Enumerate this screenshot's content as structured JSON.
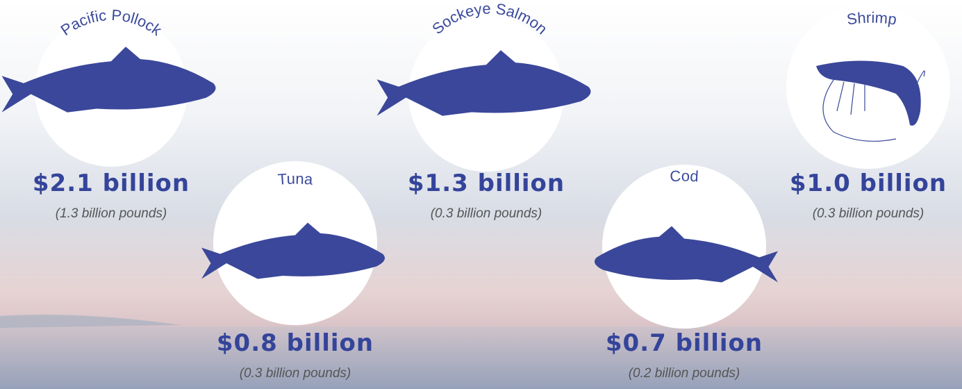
{
  "items": [
    {
      "name": "Pacific Pollock",
      "value": "$2.1 billion",
      "pounds": "(1.3 billion pounds)"
    },
    {
      "name": "Tuna",
      "value": "$0.8 billion",
      "pounds": "(0.3 billion pounds)"
    },
    {
      "name": "Sockeye Salmon",
      "value": "$1.3 billion",
      "pounds": "(0.3 billion pounds)"
    },
    {
      "name": "Cod",
      "value": "$0.7 billion",
      "pounds": "(0.2 billion pounds)"
    },
    {
      "name": "Shrimp",
      "value": "$1.0 billion",
      "pounds": "(0.3 billion pounds)"
    }
  ]
}
